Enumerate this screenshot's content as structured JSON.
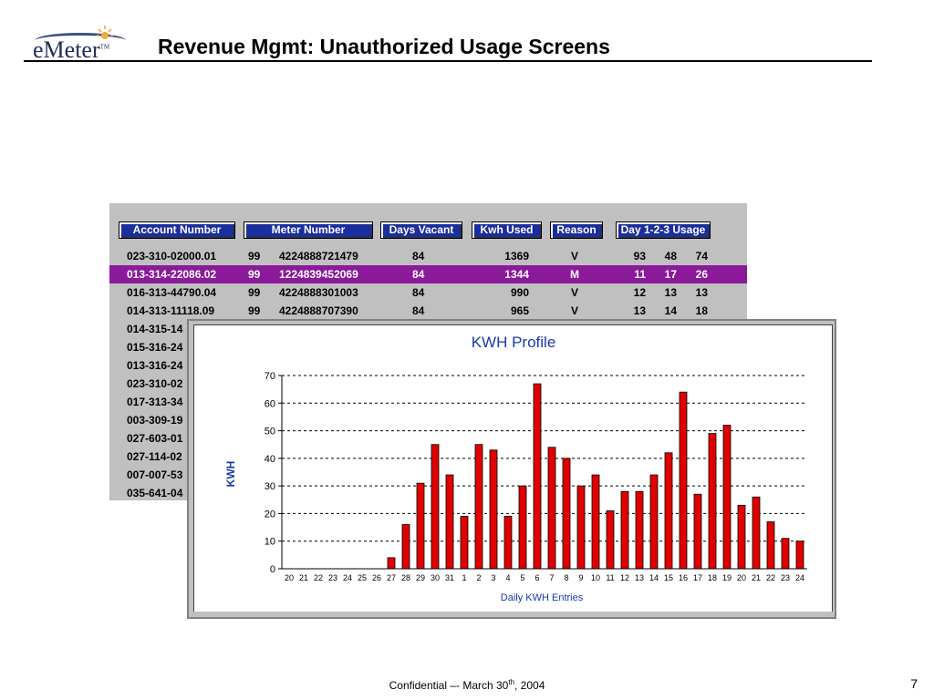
{
  "slide": {
    "title": "Revenue Mgmt: Unauthorized Usage Screens",
    "logo_text": "eMeter",
    "logo_tm": "TM",
    "footer_prefix": "Confidential –- March 30",
    "footer_sup": "th",
    "footer_suffix": ", 2004",
    "page_number": "7"
  },
  "table": {
    "headers": [
      "Account Number",
      "Meter Number",
      "Days Vacant",
      "Kwh Used",
      "Reason",
      "Day 1-2-3 Usage"
    ],
    "rows": [
      {
        "account": "023-310-02000.01",
        "prefix": "99",
        "meter": "4224888721479",
        "days": "84",
        "kwh": "1369",
        "reason": "V",
        "d1": "93",
        "d2": "48",
        "d3": "74"
      },
      {
        "account": "013-314-22086.02",
        "prefix": "99",
        "meter": "1224839452069",
        "days": "84",
        "kwh": "1344",
        "reason": "M",
        "d1": "11",
        "d2": "17",
        "d3": "26"
      },
      {
        "account": "016-313-44790.04",
        "prefix": "99",
        "meter": "4224888301003",
        "days": "84",
        "kwh": "990",
        "reason": "V",
        "d1": "12",
        "d2": "13",
        "d3": "13"
      },
      {
        "account": "014-313-11118.09",
        "prefix": "99",
        "meter": "4224888707390",
        "days": "84",
        "kwh": "965",
        "reason": "V",
        "d1": "13",
        "d2": "14",
        "d3": "18"
      }
    ],
    "partial_rows": [
      "014-315-14",
      "015-316-24",
      "013-316-24",
      "023-310-02",
      "017-313-34",
      "003-309-19",
      "027-603-01",
      "027-114-02",
      "007-007-53",
      "035-641-04"
    ],
    "selected_row_index": 1,
    "colors": {
      "header_bg": "#1a2e9c",
      "selected_bg": "#8b1a9a",
      "panel_bg": "#c0c0c0"
    }
  },
  "chart_data": {
    "type": "bar",
    "title": "KWH Profile",
    "xlabel": "Daily KWH Entries",
    "ylabel": "KWH",
    "ylim": [
      0,
      70
    ],
    "yticks": [
      "0",
      "10",
      "20",
      "30",
      "40",
      "50",
      "60",
      "70"
    ],
    "grid": true,
    "bar_color": "#e00000",
    "title_color": "#1a3aa8",
    "categories": [
      "20",
      "21",
      "22",
      "23",
      "24",
      "25",
      "26",
      "27",
      "28",
      "29",
      "30",
      "31",
      "1",
      "2",
      "3",
      "4",
      "5",
      "6",
      "7",
      "8",
      "9",
      "10",
      "11",
      "12",
      "13",
      "14",
      "15",
      "16",
      "17",
      "18",
      "19",
      "20",
      "21",
      "22",
      "23",
      "24"
    ],
    "values": [
      0,
      0,
      0,
      0,
      0,
      0,
      0,
      4,
      16,
      31,
      45,
      34,
      19,
      45,
      43,
      19,
      30,
      67,
      44,
      40,
      30,
      34,
      21,
      28,
      28,
      34,
      42,
      64,
      27,
      49,
      52,
      23,
      26,
      17,
      11,
      10
    ]
  }
}
